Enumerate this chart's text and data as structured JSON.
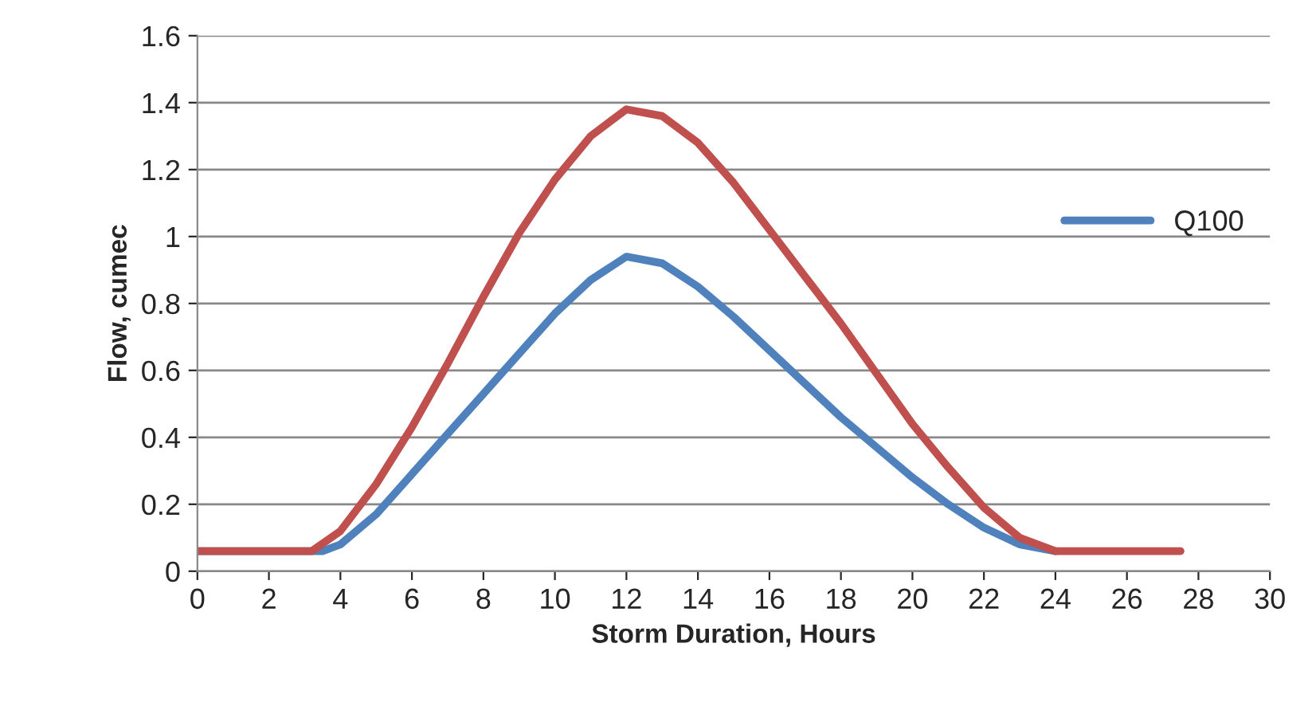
{
  "chart_data": {
    "type": "line",
    "xlabel": "Storm Duration, Hours",
    "ylabel": "Flow, cumec",
    "xlim": [
      0,
      30
    ],
    "xticks": [
      0,
      2,
      4,
      6,
      8,
      10,
      12,
      14,
      16,
      18,
      20,
      22,
      24,
      26,
      28,
      30
    ],
    "ylim": [
      0,
      1.6
    ],
    "yticks": [
      0,
      0.2,
      0.4,
      0.6,
      0.8,
      1,
      1.2,
      1.4,
      1.6
    ],
    "grid": "y",
    "legend": "right",
    "marker": "none",
    "line_style": "solid",
    "series": [
      {
        "name": "Q100",
        "color": "#4f81bd",
        "x": [
          0,
          3.5,
          4,
          5,
          6,
          7,
          8,
          9,
          10,
          11,
          12,
          13,
          14,
          15,
          16,
          17,
          18,
          19,
          20,
          21,
          22,
          23,
          24
        ],
        "values": [
          0.06,
          0.06,
          0.08,
          0.17,
          0.29,
          0.41,
          0.53,
          0.65,
          0.77,
          0.87,
          0.94,
          0.92,
          0.85,
          0.76,
          0.66,
          0.56,
          0.46,
          0.37,
          0.28,
          0.2,
          0.13,
          0.08,
          0.06
        ]
      },
      {
        "color": "#c0504d",
        "x": [
          0,
          3.2,
          4,
          5,
          6,
          7,
          8,
          9,
          10,
          11,
          12,
          13,
          14,
          15,
          16,
          17,
          18,
          19,
          20,
          21,
          22,
          23,
          24,
          27.5
        ],
        "values": [
          0.06,
          0.06,
          0.12,
          0.26,
          0.43,
          0.62,
          0.82,
          1.01,
          1.17,
          1.3,
          1.38,
          1.36,
          1.28,
          1.16,
          1.02,
          0.88,
          0.74,
          0.59,
          0.44,
          0.31,
          0.19,
          0.1,
          0.06,
          0.06
        ]
      }
    ]
  }
}
